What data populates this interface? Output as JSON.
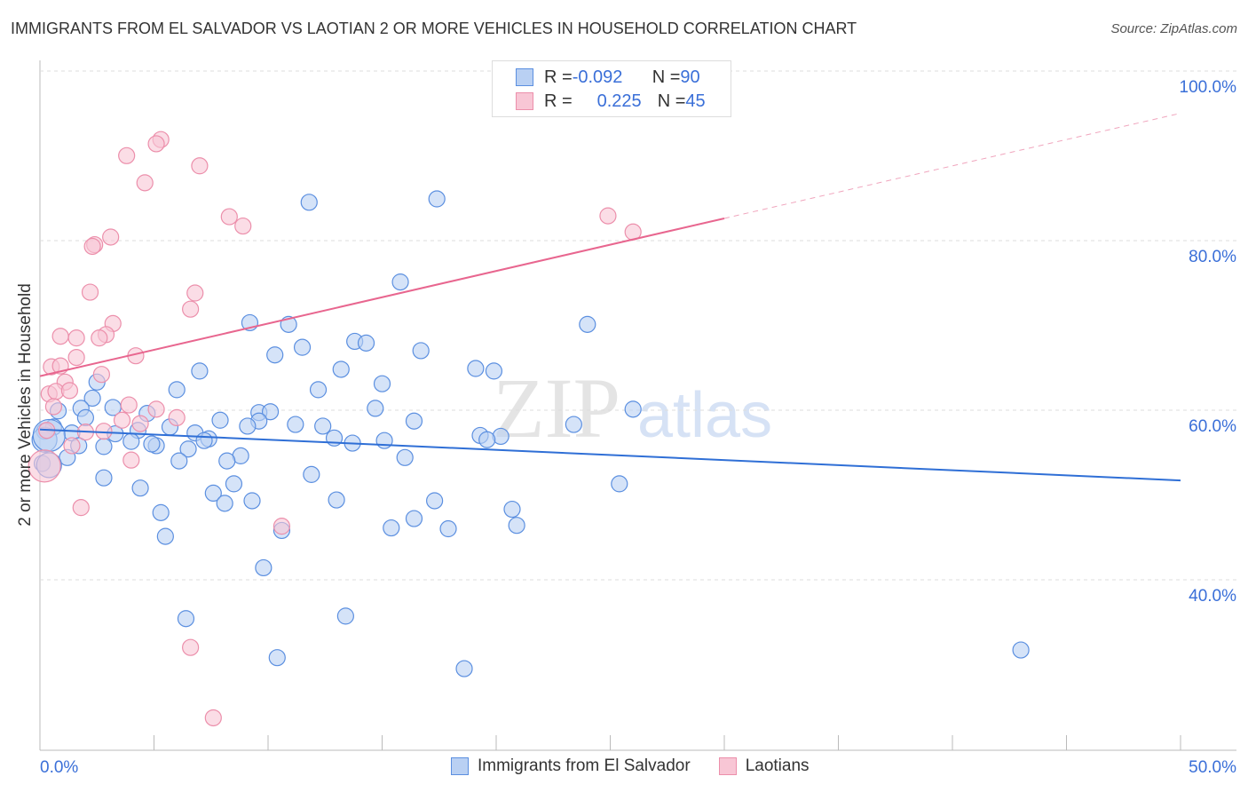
{
  "chart_data": {
    "type": "scatter",
    "title": "IMMIGRANTS FROM EL SALVADOR VS LAOTIAN 2 OR MORE VEHICLES IN HOUSEHOLD CORRELATION CHART",
    "source": "Source: ZipAtlas.com",
    "xlabel": "",
    "ylabel": "2 or more Vehicles in Household",
    "xlim": [
      0,
      50
    ],
    "ylim": [
      21.7,
      102.8
    ],
    "x_tick_labels": [
      "0.0%",
      "50.0%"
    ],
    "y_tick_labels": [
      "100.0%",
      "80.0%",
      "60.0%",
      "40.0%"
    ],
    "y_ticks": [
      100,
      80,
      60,
      40
    ],
    "grid": true,
    "legend_placement": "top-center",
    "stats": [
      {
        "r_label": "R = ",
        "r": "-0.092",
        "n_label": "N = ",
        "n": "90"
      },
      {
        "r_label": "R = ",
        "r": "0.225",
        "n_label": "N = ",
        "n": "45"
      }
    ],
    "series": [
      {
        "name": "Immigrants from El Salvador",
        "color": "#5b8fe0",
        "fill": "#b9d0f3",
        "trend": {
          "x": [
            0,
            50
          ],
          "y": [
            59.5,
            53.5
          ]
        },
        "points": [
          [
            11.8,
            86.3
          ],
          [
            17.4,
            86.7
          ],
          [
            15.8,
            76.9
          ],
          [
            9.2,
            72.1
          ],
          [
            10.9,
            71.9
          ],
          [
            24.0,
            71.9
          ],
          [
            13.8,
            69.9
          ],
          [
            14.3,
            69.7
          ],
          [
            11.5,
            69.2
          ],
          [
            16.7,
            68.8
          ],
          [
            10.3,
            68.3
          ],
          [
            7.0,
            66.4
          ],
          [
            13.2,
            66.6
          ],
          [
            19.1,
            66.7
          ],
          [
            19.9,
            66.4
          ],
          [
            2.5,
            65.1
          ],
          [
            15.0,
            64.9
          ],
          [
            12.2,
            64.2
          ],
          [
            6.0,
            64.2
          ],
          [
            2.3,
            63.2
          ],
          [
            0.8,
            61.7
          ],
          [
            1.8,
            62.0
          ],
          [
            3.2,
            62.1
          ],
          [
            14.7,
            62.0
          ],
          [
            26.0,
            61.9
          ],
          [
            4.7,
            61.4
          ],
          [
            9.6,
            61.5
          ],
          [
            10.1,
            61.6
          ],
          [
            2.0,
            60.9
          ],
          [
            16.4,
            60.5
          ],
          [
            23.4,
            60.1
          ],
          [
            7.9,
            60.6
          ],
          [
            11.2,
            60.1
          ],
          [
            12.4,
            59.9
          ],
          [
            9.6,
            60.5
          ],
          [
            9.1,
            59.9
          ],
          [
            0.6,
            59.8
          ],
          [
            0.2,
            59.3
          ],
          [
            5.7,
            59.8
          ],
          [
            1.4,
            59.1
          ],
          [
            3.3,
            59.0
          ],
          [
            4.3,
            59.4
          ],
          [
            6.8,
            59.1
          ],
          [
            19.3,
            58.8
          ],
          [
            20.2,
            58.7
          ],
          [
            19.6,
            58.3
          ],
          [
            7.4,
            58.4
          ],
          [
            7.2,
            58.2
          ],
          [
            12.9,
            58.5
          ],
          [
            15.1,
            58.2
          ],
          [
            13.7,
            57.9
          ],
          [
            4.0,
            58.1
          ],
          [
            5.1,
            57.6
          ],
          [
            4.9,
            57.8
          ],
          [
            2.8,
            57.5
          ],
          [
            1.7,
            57.6
          ],
          [
            6.5,
            57.2
          ],
          [
            8.8,
            56.4
          ],
          [
            8.2,
            55.8
          ],
          [
            6.1,
            55.8
          ],
          [
            16.0,
            56.2
          ],
          [
            1.2,
            56.2
          ],
          [
            0.1,
            55.5
          ],
          [
            2.8,
            53.8
          ],
          [
            11.9,
            54.2
          ],
          [
            4.4,
            52.6
          ],
          [
            8.5,
            53.1
          ],
          [
            25.4,
            53.1
          ],
          [
            7.6,
            52.0
          ],
          [
            13.0,
            51.2
          ],
          [
            9.3,
            51.1
          ],
          [
            8.1,
            50.8
          ],
          [
            17.3,
            51.1
          ],
          [
            5.3,
            49.7
          ],
          [
            20.7,
            50.1
          ],
          [
            16.4,
            49.0
          ],
          [
            20.9,
            48.2
          ],
          [
            15.4,
            47.9
          ],
          [
            17.9,
            47.8
          ],
          [
            10.6,
            47.6
          ],
          [
            5.5,
            46.9
          ],
          [
            9.8,
            43.2
          ],
          [
            6.4,
            37.2
          ],
          [
            13.4,
            37.5
          ],
          [
            43.0,
            33.5
          ],
          [
            10.4,
            32.6
          ],
          [
            18.6,
            31.3
          ],
          [
            0.2,
            58.3
          ],
          [
            0.4,
            55.3
          ],
          [
            0.4,
            58.8
          ]
        ]
      },
      {
        "name": "Laotians",
        "color": "#ec8fab",
        "fill": "#f8c6d5",
        "trend": {
          "x": [
            0,
            30,
            50
          ],
          "y": [
            65.8,
            84.4,
            96.8
          ]
        },
        "points": [
          [
            5.3,
            93.7
          ],
          [
            5.1,
            93.2
          ],
          [
            3.8,
            91.8
          ],
          [
            7.0,
            90.6
          ],
          [
            4.6,
            88.6
          ],
          [
            8.3,
            84.6
          ],
          [
            8.9,
            83.5
          ],
          [
            24.9,
            84.7
          ],
          [
            26.0,
            82.8
          ],
          [
            3.1,
            82.2
          ],
          [
            2.4,
            81.3
          ],
          [
            2.3,
            81.1
          ],
          [
            2.2,
            75.7
          ],
          [
            6.8,
            75.6
          ],
          [
            6.6,
            73.7
          ],
          [
            3.2,
            72.0
          ],
          [
            2.9,
            70.7
          ],
          [
            0.9,
            70.5
          ],
          [
            1.6,
            70.3
          ],
          [
            2.6,
            70.3
          ],
          [
            4.2,
            68.2
          ],
          [
            1.6,
            68.0
          ],
          [
            0.5,
            66.9
          ],
          [
            0.9,
            67.0
          ],
          [
            2.7,
            66.0
          ],
          [
            1.1,
            65.1
          ],
          [
            0.4,
            63.7
          ],
          [
            0.7,
            64.0
          ],
          [
            1.3,
            64.1
          ],
          [
            3.9,
            62.4
          ],
          [
            5.1,
            61.9
          ],
          [
            0.6,
            62.2
          ],
          [
            6.0,
            60.9
          ],
          [
            3.6,
            60.6
          ],
          [
            4.4,
            60.2
          ],
          [
            2.0,
            59.2
          ],
          [
            2.8,
            59.3
          ],
          [
            0.3,
            59.4
          ],
          [
            1.4,
            57.6
          ],
          [
            4.0,
            55.9
          ],
          [
            1.8,
            50.3
          ],
          [
            10.6,
            48.1
          ],
          [
            6.6,
            33.8
          ],
          [
            7.6,
            25.5
          ],
          [
            0.2,
            55.2
          ]
        ]
      }
    ]
  },
  "watermark": "ZIPatlas"
}
